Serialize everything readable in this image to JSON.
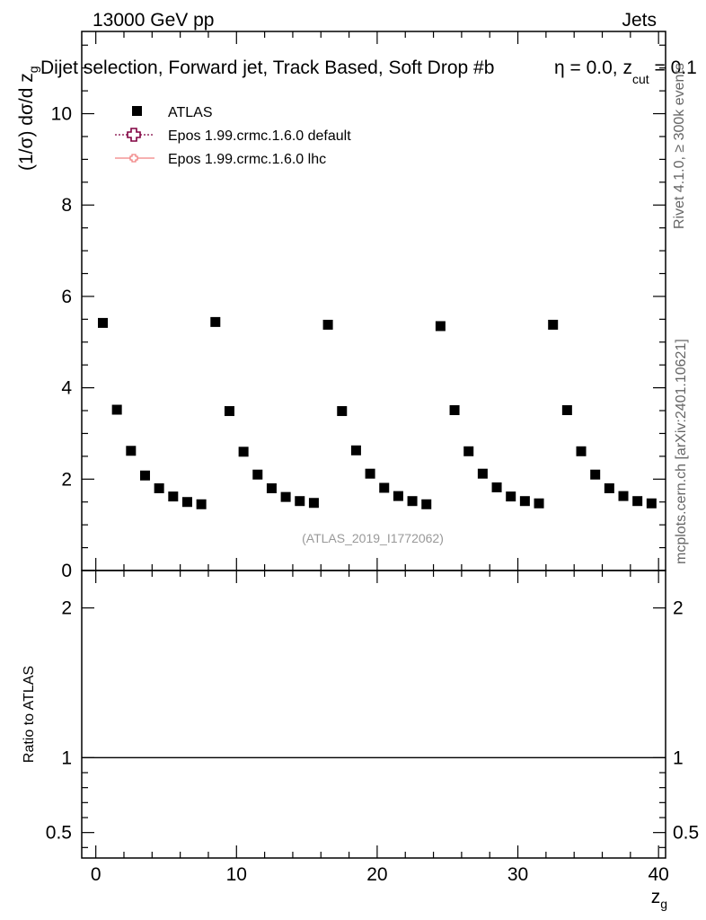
{
  "header": {
    "left": "13000 GeV pp",
    "right": "Jets"
  },
  "title": "Dijet selection, Forward jet, Track Based, Soft Drop #b",
  "title_tail": "η = 0.0, z",
  "title_tail_sub": "cut",
  "title_tail_end": " = 0.1",
  "side_texts": {
    "rivet": "Rivet 4.1.0, ≥ 300k events",
    "mcplots": "mcplots.cern.ch [arXiv:2401.10621]"
  },
  "watermark": "(ATLAS_2019_I1772062)",
  "colors": {
    "data": "#000000",
    "epos_default": "#800040",
    "epos_lhc": "#f08080"
  },
  "chart_data": [
    {
      "type": "scatter",
      "ylabel": "(1/σ) dσ/d z",
      "ylabel_sub": "g",
      "xlim": [
        -1,
        40.5
      ],
      "ylim": [
        0,
        11.8
      ],
      "y_ticks": [
        "0",
        "2",
        "4",
        "6",
        "8",
        "10"
      ],
      "grid": false,
      "legend_position": "top-left",
      "legend": [
        "ATLAS",
        "Epos 1.99.crmc.1.6.0 default",
        "Epos 1.99.crmc.1.6.0 lhc"
      ],
      "series": [
        {
          "name": "ATLAS",
          "x": [
            0.5,
            1.5,
            2.5,
            3.5,
            4.5,
            5.5,
            6.5,
            7.5,
            8.5,
            9.5,
            10.5,
            11.5,
            12.5,
            13.5,
            14.5,
            15.5,
            16.5,
            17.5,
            18.5,
            19.5,
            20.5,
            21.5,
            22.5,
            23.5,
            24.5,
            25.5,
            26.5,
            27.5,
            28.5,
            29.5,
            30.5,
            31.5,
            32.5,
            33.5,
            34.5,
            35.5,
            36.5,
            37.5,
            38.5,
            39.5
          ],
          "values": [
            5.42,
            3.52,
            2.62,
            2.08,
            1.8,
            1.62,
            1.5,
            1.45,
            5.44,
            3.49,
            2.6,
            2.1,
            1.8,
            1.61,
            1.52,
            1.48,
            5.38,
            3.49,
            2.63,
            2.12,
            1.81,
            1.63,
            1.52,
            1.45,
            5.35,
            3.51,
            2.61,
            2.12,
            1.82,
            1.62,
            1.52,
            1.47,
            5.38,
            3.51,
            2.61,
            2.1,
            1.8,
            1.63,
            1.52,
            1.47
          ]
        }
      ]
    },
    {
      "type": "line",
      "ylabel": "Ratio to ATLAS",
      "xlabel": "z",
      "xlabel_sub": "g",
      "xlim": [
        -1,
        40.5
      ],
      "ylim": [
        0.33,
        2.25
      ],
      "x_ticks": [
        "0",
        "10",
        "20",
        "30",
        "40"
      ],
      "y_ticks": [
        "0.5",
        "1",
        "2"
      ],
      "reference_line": 1
    }
  ]
}
